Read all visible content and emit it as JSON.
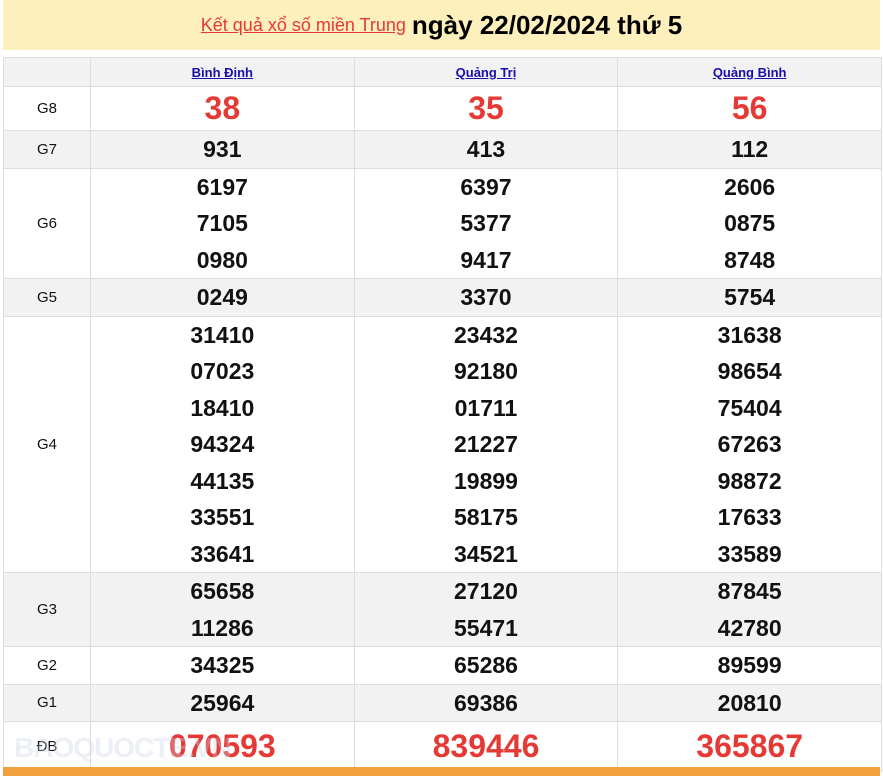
{
  "header": {
    "link": "Kết quả xổ số miền Trung",
    "date": "ngày 22/02/2024 thứ 5"
  },
  "provinces": [
    "Bình Định",
    "Quảng Trị",
    "Quảng Bình"
  ],
  "prizes": [
    {
      "label": "G8",
      "values": [
        [
          "38"
        ],
        [
          "35"
        ],
        [
          "56"
        ]
      ]
    },
    {
      "label": "G7",
      "values": [
        [
          "931"
        ],
        [
          "413"
        ],
        [
          "112"
        ]
      ]
    },
    {
      "label": "G6",
      "values": [
        [
          "6197",
          "7105",
          "0980"
        ],
        [
          "6397",
          "5377",
          "9417"
        ],
        [
          "2606",
          "0875",
          "8748"
        ]
      ]
    },
    {
      "label": "G5",
      "values": [
        [
          "0249"
        ],
        [
          "3370"
        ],
        [
          "5754"
        ]
      ]
    },
    {
      "label": "G4",
      "values": [
        [
          "31410",
          "07023",
          "18410",
          "94324",
          "44135",
          "33551",
          "33641"
        ],
        [
          "23432",
          "92180",
          "01711",
          "21227",
          "19899",
          "58175",
          "34521"
        ],
        [
          "31638",
          "98654",
          "75404",
          "67263",
          "98872",
          "17633",
          "33589"
        ]
      ]
    },
    {
      "label": "G3",
      "values": [
        [
          "65658",
          "11286"
        ],
        [
          "27120",
          "55471"
        ],
        [
          "87845",
          "42780"
        ]
      ]
    },
    {
      "label": "G2",
      "values": [
        [
          "34325"
        ],
        [
          "65286"
        ],
        [
          "89599"
        ]
      ]
    },
    {
      "label": "G1",
      "values": [
        [
          "25964"
        ],
        [
          "69386"
        ],
        [
          "20810"
        ]
      ]
    },
    {
      "label": "ĐB",
      "values": [
        [
          "070593"
        ],
        [
          "839446"
        ],
        [
          "365867"
        ]
      ]
    }
  ],
  "watermark": "BAOQUOCTE.VN",
  "colors": {
    "accent_red": "#e53935",
    "banner": "#fdf0bd",
    "footer": "#f2a03d"
  }
}
